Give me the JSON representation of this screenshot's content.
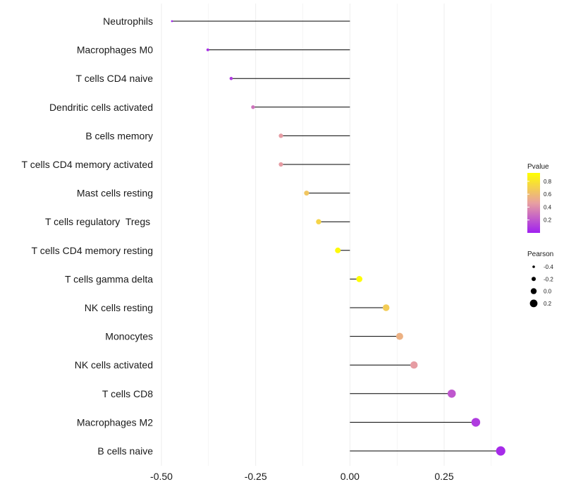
{
  "chart_data": {
    "type": "lollipop",
    "title": "",
    "xlabel": "",
    "ylabel": "",
    "xlim": [
      -0.5,
      0.4
    ],
    "x_ticks": [
      -0.5,
      -0.25,
      0.0,
      0.25
    ],
    "x_tick_labels": [
      "-0.50",
      "-0.25",
      "0.00",
      "0.25"
    ],
    "grid": "vertical",
    "categories": [
      "Neutrophils",
      "Macrophages M0",
      "T cells CD4 naive",
      "Dendritic cells activated",
      "B cells memory",
      "T cells CD4 memory activated",
      "Mast cells resting",
      "T cells regulatory  Tregs ",
      "T cells CD4 memory resting",
      "T cells gamma delta",
      "NK cells resting",
      "Monocytes",
      "NK cells activated",
      "T cells CD8",
      "Macrophages M2",
      "B cells naive"
    ],
    "pearson": [
      -0.472,
      -0.377,
      -0.315,
      -0.257,
      -0.183,
      -0.183,
      -0.115,
      -0.083,
      -0.032,
      0.025,
      0.096,
      0.132,
      0.17,
      0.27,
      0.334,
      0.4
    ],
    "pvalue": [
      0.02,
      0.05,
      0.1,
      0.3,
      0.45,
      0.45,
      0.65,
      0.72,
      0.9,
      0.92,
      0.68,
      0.55,
      0.45,
      0.2,
      0.1,
      0.04
    ],
    "legend": {
      "color": {
        "title": "Pvalue",
        "ticks": [
          "0.8",
          "0.6",
          "0.4",
          "0.2"
        ],
        "tick_values": [
          0.8,
          0.6,
          0.4,
          0.2
        ],
        "range": [
          0.0,
          0.93
        ],
        "low_color": "#a020f0",
        "mid_color": "#e8a0a0",
        "high_color": "#ffff00"
      },
      "size": {
        "title": "Pearson",
        "labels": [
          "-0.4",
          "-0.2",
          "0.0",
          "0.2"
        ],
        "values": [
          -0.4,
          -0.2,
          0.0,
          0.2
        ]
      }
    }
  }
}
